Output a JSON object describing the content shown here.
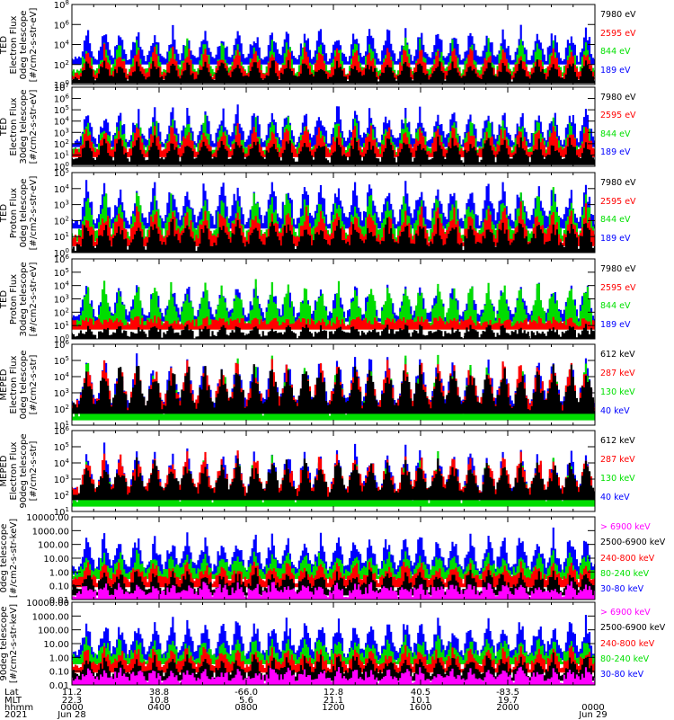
{
  "chart_data": {
    "type": "line",
    "title": "",
    "x_range_hours": [
      0,
      24
    ],
    "panels": [
      {
        "ylabel": [
          "TED",
          "Electron Flux",
          "0deg telescope",
          "[#/cm2-s-str-eV]"
        ],
        "yscale": "log",
        "ylim_exp": [
          0,
          8
        ],
        "ytick_labels": [
          "10^0",
          "10^2",
          "10^4",
          "10^6",
          "10^8"
        ],
        "ytick_exps": [
          0,
          2,
          4,
          6,
          8
        ],
        "series": [
          {
            "name": "7980 eV",
            "color": "#000000",
            "base_exp": 0.6,
            "peak_exp": 2.6
          },
          {
            "name": "2595 eV",
            "color": "#ff0000",
            "base_exp": 1.0,
            "peak_exp": 4.0
          },
          {
            "name": "844 eV",
            "color": "#00dd00",
            "base_exp": 1.3,
            "peak_exp": 4.8
          },
          {
            "name": "189 eV",
            "color": "#0000ff",
            "base_exp": 2.5,
            "peak_exp": 6.0
          }
        ]
      },
      {
        "ylabel": [
          "TED",
          "Electron Flux",
          "30deg telescope",
          "[#/cm2-s-str-eV]"
        ],
        "yscale": "log",
        "ylim_exp": [
          0,
          7
        ],
        "ytick_labels": [
          "10^0",
          "10^1",
          "10^2",
          "10^3",
          "10^4",
          "10^5",
          "10^6",
          "10^7"
        ],
        "ytick_exps": [
          0,
          1,
          2,
          3,
          4,
          5,
          6,
          7
        ],
        "series": [
          {
            "name": "7980 eV",
            "color": "#000000",
            "base_exp": 0.6,
            "peak_exp": 2.8
          },
          {
            "name": "2595 eV",
            "color": "#ff0000",
            "base_exp": 1.3,
            "peak_exp": 3.8
          },
          {
            "name": "844 eV",
            "color": "#00dd00",
            "base_exp": 1.5,
            "peak_exp": 4.6
          },
          {
            "name": "189 eV",
            "color": "#0000ff",
            "base_exp": 2.2,
            "peak_exp": 5.5
          }
        ]
      },
      {
        "ylabel": [
          "TED",
          "Proton Flux",
          "0deg telescope",
          "[#/cm2-s-str-eV]"
        ],
        "yscale": "log",
        "ylim_exp": [
          0,
          5
        ],
        "ytick_labels": [
          "10^0",
          "10^1",
          "10^2",
          "10^3",
          "10^4",
          "10^5"
        ],
        "ytick_exps": [
          0,
          1,
          2,
          3,
          4,
          5
        ],
        "series": [
          {
            "name": "7980 eV",
            "color": "#000000",
            "base_exp": 0.4,
            "peak_exp": 2.2
          },
          {
            "name": "2595 eV",
            "color": "#ff0000",
            "base_exp": 0.9,
            "peak_exp": 3.0
          },
          {
            "name": "844 eV",
            "color": "#00dd00",
            "base_exp": 1.2,
            "peak_exp": 4.0
          },
          {
            "name": "189 eV",
            "color": "#0000ff",
            "base_exp": 2.0,
            "peak_exp": 4.6
          }
        ]
      },
      {
        "ylabel": [
          "TED",
          "Proton Flux",
          "30deg telescope",
          "[#/cm2-s-str-eV]"
        ],
        "yscale": "log",
        "ylim_exp": [
          0,
          6
        ],
        "ytick_labels": [
          "10^0",
          "10^1",
          "10^2",
          "10^3",
          "10^4",
          "10^5",
          "10^6"
        ],
        "ytick_exps": [
          0,
          1,
          2,
          3,
          4,
          5,
          6
        ],
        "series": [
          {
            "name": "7980 eV",
            "color": "#000000",
            "base_exp": 0.3,
            "peak_exp": 1.0
          },
          {
            "name": "2595 eV",
            "color": "#ff0000",
            "base_exp": 1.2,
            "peak_exp": 1.5
          },
          {
            "name": "844 eV",
            "color": "#00dd00",
            "base_exp": 1.2,
            "peak_exp": 4.6
          },
          {
            "name": "189 eV",
            "color": "#0000ff",
            "base_exp": 1.8,
            "peak_exp": 4.3
          }
        ]
      },
      {
        "ylabel": [
          "MEPED",
          "Electron Flux",
          "0deg telescope",
          "[#/cm2-s-str]"
        ],
        "yscale": "log",
        "ylim_exp": [
          1,
          6
        ],
        "ytick_labels": [
          "10^1",
          "10^2",
          "10^3",
          "10^4",
          "10^5",
          "10^6"
        ],
        "ytick_exps": [
          1,
          2,
          3,
          4,
          5,
          6
        ],
        "series": [
          {
            "name": "612 keV",
            "color": "#000000",
            "base_exp": 2.2,
            "peak_exp": 5.0
          },
          {
            "name": "287 keV",
            "color": "#ff0000",
            "base_exp": 2.3,
            "peak_exp": 5.2
          },
          {
            "name": "130 keV",
            "color": "#00dd00",
            "base_exp": 1.8,
            "peak_exp": 5.3
          },
          {
            "name": "40 keV",
            "color": "#0000ff",
            "base_exp": 2.4,
            "peak_exp": 5.5
          }
        ]
      },
      {
        "ylabel": [
          "MEPED",
          "Electron Flux",
          "90deg telescope",
          "[#/cm2-s-str]"
        ],
        "yscale": "log",
        "ylim_exp": [
          1,
          6
        ],
        "ytick_labels": [
          "10^1",
          "10^2",
          "10^3",
          "10^4",
          "10^5",
          "10^6"
        ],
        "ytick_exps": [
          1,
          2,
          3,
          4,
          5,
          6
        ],
        "series": [
          {
            "name": "612 keV",
            "color": "#000000",
            "base_exp": 2.2,
            "peak_exp": 4.4
          },
          {
            "name": "287 keV",
            "color": "#ff0000",
            "base_exp": 2.3,
            "peak_exp": 4.8
          },
          {
            "name": "130 keV",
            "color": "#00dd00",
            "base_exp": 1.8,
            "peak_exp": 4.6
          },
          {
            "name": "40 keV",
            "color": "#0000ff",
            "base_exp": 2.2,
            "peak_exp": 5.2
          }
        ]
      },
      {
        "ylabel": [
          "0deg telescope",
          "[#/cm2-s-str-keV]"
        ],
        "yscale": "log",
        "ylim_exp": [
          -2,
          4
        ],
        "ytick_labels": [
          "0.01",
          "0.10",
          "1.00",
          "10.00",
          "100.00",
          "1000.00",
          "10000.00"
        ],
        "ytick_exps": [
          -2,
          -1,
          0,
          1,
          2,
          3,
          4
        ],
        "series": [
          {
            "name": "> 6900 keV",
            "color": "#ff00ff",
            "base_exp": -1.6,
            "peak_exp": -0.8
          },
          {
            "name": "2500-6900 keV",
            "color": "#000000",
            "base_exp": -1.2,
            "peak_exp": 0.2
          },
          {
            "name": "240-800 keV",
            "color": "#ff0000",
            "base_exp": -0.6,
            "peak_exp": 0.8
          },
          {
            "name": "80-240 keV",
            "color": "#00dd00",
            "base_exp": 0.0,
            "peak_exp": 1.5
          },
          {
            "name": "30-80 keV",
            "color": "#0000ff",
            "base_exp": 0.3,
            "peak_exp": 3.0
          }
        ]
      },
      {
        "ylabel": [
          "90deg telescope",
          "[#/cm2-s-str-keV]"
        ],
        "yscale": "log",
        "ylim_exp": [
          -2,
          4
        ],
        "ytick_labels": [
          "0.01",
          "0.10",
          "1.00",
          "10.00",
          "100.00",
          "1000.00",
          "10000.00"
        ],
        "ytick_exps": [
          -2,
          -1,
          0,
          1,
          2,
          3,
          4
        ],
        "series": [
          {
            "name": "> 6900 keV",
            "color": "#ff00ff",
            "base_exp": -1.6,
            "peak_exp": -0.8
          },
          {
            "name": "2500-6900 keV",
            "color": "#000000",
            "base_exp": -1.2,
            "peak_exp": 0.2
          },
          {
            "name": "240-800 keV",
            "color": "#ff0000",
            "base_exp": -0.6,
            "peak_exp": 0.8
          },
          {
            "name": "80-240 keV",
            "color": "#00dd00",
            "base_exp": 0.0,
            "peak_exp": 1.5
          },
          {
            "name": "30-80 keV",
            "color": "#0000ff",
            "base_exp": 0.3,
            "peak_exp": 3.1
          }
        ]
      }
    ],
    "x_axis": {
      "row_labels": [
        "Lat",
        "MLT",
        "hhmm",
        "2021"
      ],
      "ticks": [
        {
          "hour": 0,
          "lat": "11.2",
          "mlt": "22.3",
          "hhmm": "0000",
          "date": "Jun 28"
        },
        {
          "hour": 4,
          "lat": "38.8",
          "mlt": "10.8",
          "hhmm": "0400",
          "date": ""
        },
        {
          "hour": 8,
          "lat": "-66.0",
          "mlt": "5.6",
          "hhmm": "0800",
          "date": ""
        },
        {
          "hour": 12,
          "lat": "12.8",
          "mlt": "21.1",
          "hhmm": "1200",
          "date": ""
        },
        {
          "hour": 16,
          "lat": "40.5",
          "mlt": "10.1",
          "hhmm": "1600",
          "date": ""
        },
        {
          "hour": 20,
          "lat": "-83.5",
          "mlt": "19.7",
          "hhmm": "2000",
          "date": ""
        },
        {
          "hour": 24,
          "lat": "",
          "mlt": "",
          "hhmm": "0000",
          "date": "Jun 29"
        }
      ],
      "orbit_peak_hours": [
        0.7,
        1.5,
        2.2,
        3.0,
        3.8,
        4.6,
        5.3,
        6.1,
        6.9,
        7.6,
        8.4,
        9.2,
        9.9,
        10.7,
        11.4,
        12.2,
        13.0,
        13.7,
        14.5,
        15.3,
        16.0,
        16.8,
        17.5,
        18.3,
        19.1,
        19.8,
        20.6,
        21.4,
        22.1,
        22.9,
        23.6
      ]
    }
  }
}
